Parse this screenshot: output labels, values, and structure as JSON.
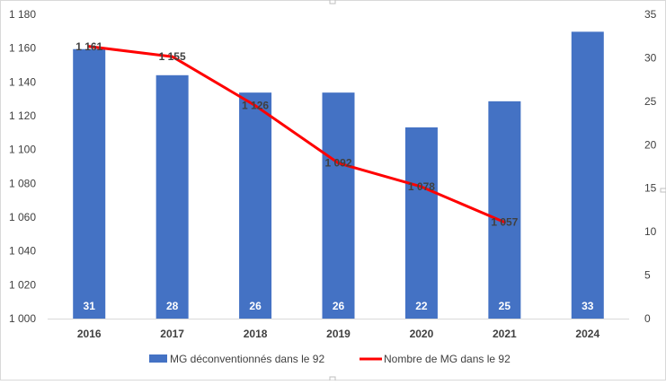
{
  "chart_data": {
    "type": "bar",
    "categories": [
      "2016",
      "2017",
      "2018",
      "2019",
      "2020",
      "2021",
      "2024"
    ],
    "series": [
      {
        "name": "MG déconventionnés dans le 92",
        "type": "bar",
        "axis": "right",
        "values": [
          31,
          28,
          26,
          26,
          22,
          25,
          33
        ],
        "labels": [
          "31",
          "28",
          "26",
          "26",
          "22",
          "25",
          "33"
        ],
        "color": "#4472C4"
      },
      {
        "name": "Nombre de MG dans le 92",
        "type": "line",
        "axis": "left",
        "values": [
          1161,
          1155,
          1126,
          1092,
          1078,
          1057,
          null
        ],
        "labels": [
          "1 161",
          "1 155",
          "1 126",
          "1 092",
          "1 078",
          "1 057",
          ""
        ],
        "color": "#FF0000"
      }
    ],
    "y_left": {
      "ylim": [
        1000,
        1180
      ],
      "ticks": [
        1000,
        1020,
        1040,
        1060,
        1080,
        1100,
        1120,
        1140,
        1160,
        1180
      ],
      "tick_labels": [
        "1 000",
        "1 020",
        "1 040",
        "1 060",
        "1 080",
        "1 100",
        "1 120",
        "1 140",
        "1 160",
        "1 180"
      ]
    },
    "y_right": {
      "ylim": [
        0,
        35
      ],
      "ticks": [
        0,
        5,
        10,
        15,
        20,
        25,
        30,
        35
      ],
      "tick_labels": [
        "0",
        "5",
        "10",
        "15",
        "20",
        "25",
        "30",
        "35"
      ]
    },
    "title": "",
    "xlabel": "",
    "ylabel": "",
    "grid": false,
    "legend_position": "bottom"
  }
}
